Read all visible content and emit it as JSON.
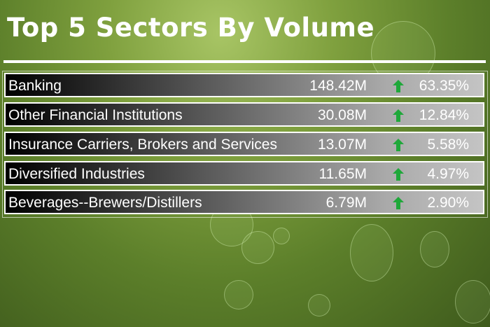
{
  "title": "Top 5 Sectors By Volume",
  "colors": {
    "arrow_up": "#1fa83a",
    "background": "#7fa03e"
  },
  "rows": [
    {
      "name": "Banking",
      "volume": "148.42M",
      "trend_icon": "arrow-up-icon",
      "percent": "63.35%"
    },
    {
      "name": "Other Financial Institutions",
      "volume": "30.08M",
      "trend_icon": "arrow-up-icon",
      "percent": "12.84%"
    },
    {
      "name": "Insurance Carriers, Brokers and Services",
      "volume": "13.07M",
      "trend_icon": "arrow-up-icon",
      "percent": "5.58%"
    },
    {
      "name": "Diversified Industries",
      "volume": "11.65M",
      "trend_icon": "arrow-up-icon",
      "percent": "4.97%"
    },
    {
      "name": "Beverages--Brewers/Distillers",
      "volume": "6.79M",
      "trend_icon": "arrow-up-icon",
      "percent": "2.90%"
    }
  ]
}
